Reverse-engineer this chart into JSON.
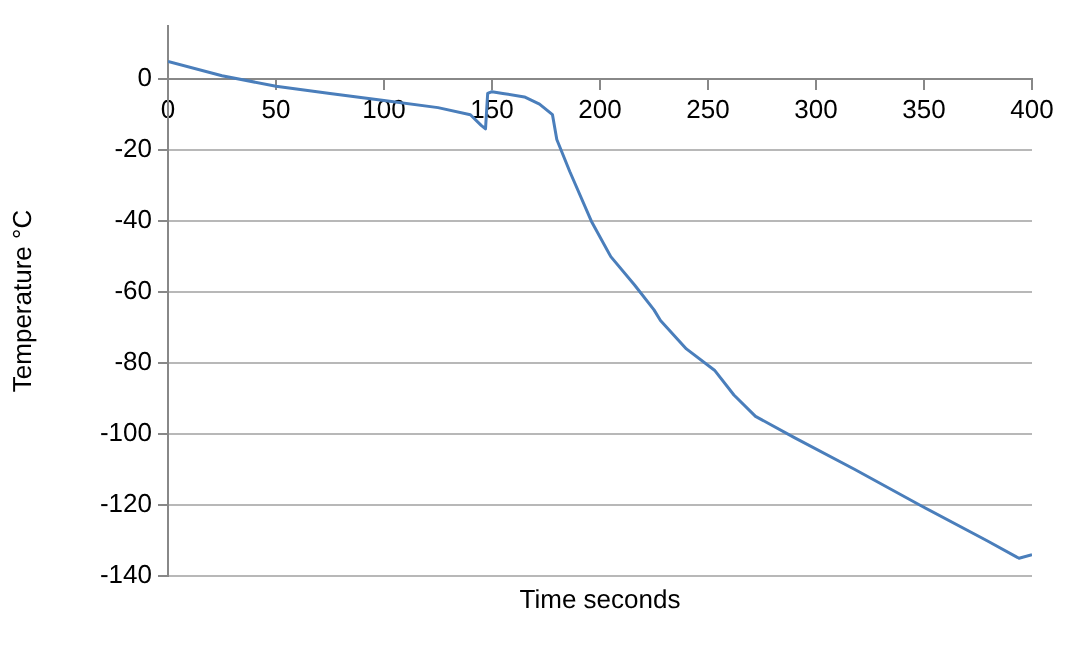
{
  "chart_data": {
    "type": "line",
    "xlabel": "Time seconds",
    "ylabel": "Temperature °C",
    "color": "#4a7ebb",
    "x": [
      0,
      25,
      50,
      75,
      100,
      125,
      140,
      145,
      147,
      148,
      150,
      155,
      165,
      172,
      178,
      180,
      186,
      196,
      205,
      216,
      225,
      228,
      240,
      253,
      262,
      272,
      290,
      318,
      348,
      379,
      394,
      400
    ],
    "values": [
      5,
      1,
      -2,
      -4,
      -6,
      -8,
      -10,
      -13,
      -14,
      -4,
      -3.5,
      -4,
      -5,
      -7,
      -10,
      -17,
      -26,
      -40,
      -50,
      -58,
      -65,
      -68,
      -76,
      -82,
      -89,
      -95,
      -101,
      -110,
      -120,
      -130,
      -135,
      -134
    ],
    "xlim": [
      0,
      400
    ],
    "xticks": [
      0,
      50,
      100,
      150,
      200,
      250,
      300,
      350,
      400
    ],
    "ylim": [
      -140,
      15
    ],
    "yticks": [
      -140,
      -120,
      -100,
      -80,
      -60,
      -40,
      -20,
      0
    ],
    "grid": "y",
    "marker": "none",
    "line_style": "solid",
    "legend": false
  }
}
